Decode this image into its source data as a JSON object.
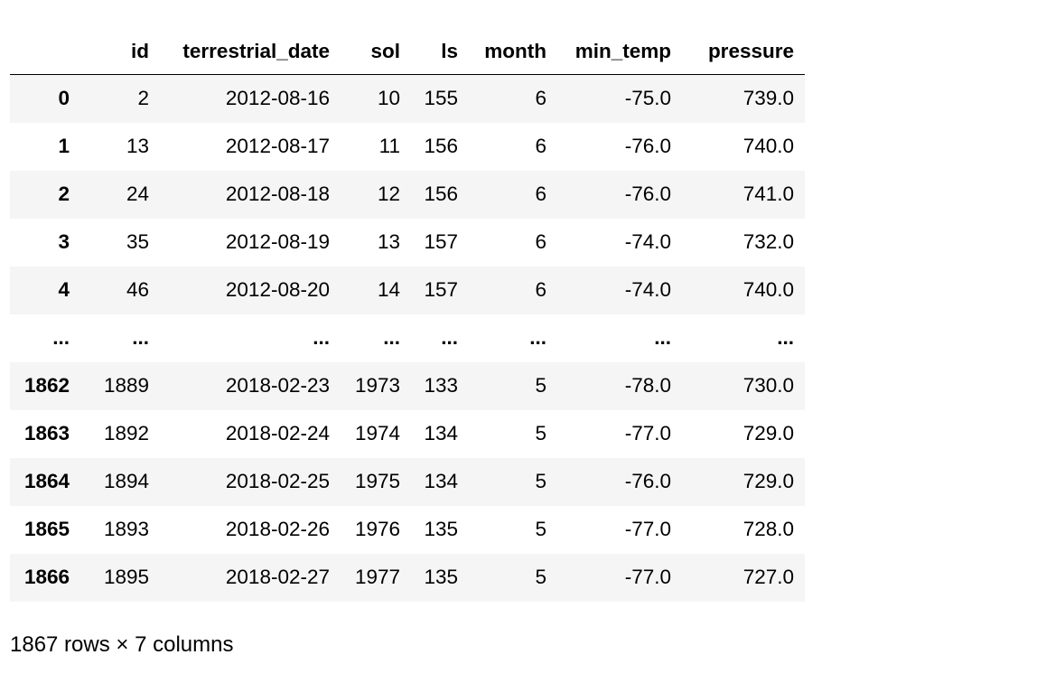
{
  "table": {
    "columns": [
      "",
      "id",
      "terrestrial_date",
      "sol",
      "ls",
      "month",
      "min_temp",
      "pressure"
    ],
    "rows": [
      [
        "0",
        "2",
        "2012-08-16",
        "10",
        "155",
        "6",
        "-75.0",
        "739.0"
      ],
      [
        "1",
        "13",
        "2012-08-17",
        "11",
        "156",
        "6",
        "-76.0",
        "740.0"
      ],
      [
        "2",
        "24",
        "2012-08-18",
        "12",
        "156",
        "6",
        "-76.0",
        "741.0"
      ],
      [
        "3",
        "35",
        "2012-08-19",
        "13",
        "157",
        "6",
        "-74.0",
        "732.0"
      ],
      [
        "4",
        "46",
        "2012-08-20",
        "14",
        "157",
        "6",
        "-74.0",
        "740.0"
      ],
      [
        "...",
        "...",
        "...",
        "...",
        "...",
        "...",
        "...",
        "..."
      ],
      [
        "1862",
        "1889",
        "2018-02-23",
        "1973",
        "133",
        "5",
        "-78.0",
        "730.0"
      ],
      [
        "1863",
        "1892",
        "2018-02-24",
        "1974",
        "134",
        "5",
        "-77.0",
        "729.0"
      ],
      [
        "1864",
        "1894",
        "2018-02-25",
        "1975",
        "134",
        "5",
        "-76.0",
        "729.0"
      ],
      [
        "1865",
        "1893",
        "2018-02-26",
        "1976",
        "135",
        "5",
        "-77.0",
        "728.0"
      ],
      [
        "1866",
        "1895",
        "2018-02-27",
        "1977",
        "135",
        "5",
        "-77.0",
        "727.0"
      ]
    ]
  },
  "footer": {
    "shape_text": "1867 rows × 7 columns"
  },
  "colors": {
    "stripe": "#f5f5f5",
    "header_rule": "#000000",
    "text": "#000000"
  }
}
